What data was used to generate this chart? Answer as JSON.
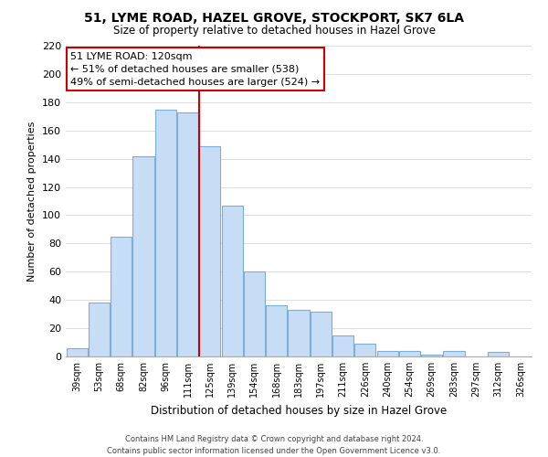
{
  "title": "51, LYME ROAD, HAZEL GROVE, STOCKPORT, SK7 6LA",
  "subtitle": "Size of property relative to detached houses in Hazel Grove",
  "xlabel": "Distribution of detached houses by size in Hazel Grove",
  "ylabel": "Number of detached properties",
  "categories": [
    "39sqm",
    "53sqm",
    "68sqm",
    "82sqm",
    "96sqm",
    "111sqm",
    "125sqm",
    "139sqm",
    "154sqm",
    "168sqm",
    "183sqm",
    "197sqm",
    "211sqm",
    "226sqm",
    "240sqm",
    "254sqm",
    "269sqm",
    "283sqm",
    "297sqm",
    "312sqm",
    "326sqm"
  ],
  "values": [
    6,
    38,
    85,
    142,
    175,
    173,
    149,
    107,
    60,
    36,
    33,
    32,
    15,
    9,
    4,
    4,
    1,
    4,
    0,
    3,
    0
  ],
  "bar_color": "#c7ddf5",
  "bar_edge_color": "#7bafd4",
  "vline_x_index": 6,
  "vline_color": "#cc0000",
  "annotation_title": "51 LYME ROAD: 120sqm",
  "annotation_line1": "← 51% of detached houses are smaller (538)",
  "annotation_line2": "49% of semi-detached houses are larger (524) →",
  "annotation_box_color": "#ffffff",
  "annotation_box_edge_color": "#cc0000",
  "ylim": [
    0,
    220
  ],
  "yticks": [
    0,
    20,
    40,
    60,
    80,
    100,
    120,
    140,
    160,
    180,
    200,
    220
  ],
  "footer_line1": "Contains HM Land Registry data © Crown copyright and database right 2024.",
  "footer_line2": "Contains public sector information licensed under the Open Government Licence v3.0.",
  "bg_color": "#ffffff",
  "grid_color": "#dddddd"
}
